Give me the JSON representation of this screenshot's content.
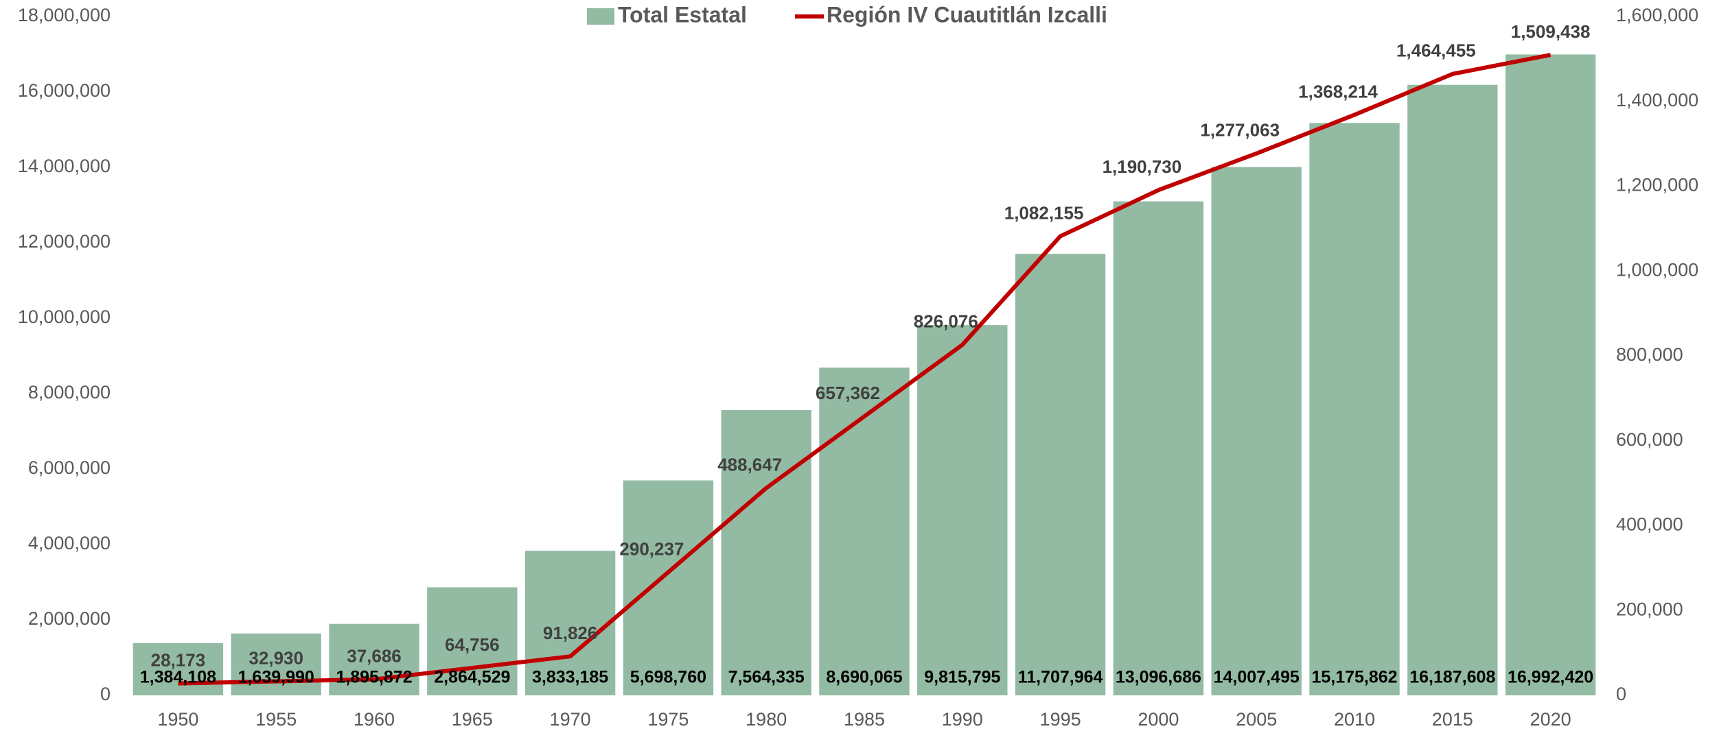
{
  "chart_data": {
    "type": "bar_line",
    "categories": [
      "1950",
      "1955",
      "1960",
      "1965",
      "1970",
      "1975",
      "1980",
      "1985",
      "1990",
      "1995",
      "2000",
      "2005",
      "2010",
      "2015",
      "2020"
    ],
    "series": [
      {
        "name": "Total Estatal",
        "type": "bar",
        "color": "#93bba3",
        "values": [
          1384108,
          1639990,
          1895872,
          2864529,
          3833185,
          5698760,
          7564335,
          8690065,
          9815795,
          11707964,
          13096686,
          14007495,
          15175862,
          16187608,
          16992420
        ],
        "value_labels": [
          "1,384,108",
          "1,639,990",
          "1,895,872",
          "2,864,529",
          "3,833,185",
          "5,698,760",
          "7,564,335",
          "8,690,065",
          "9,815,795",
          "11,707,964",
          "13,096,686",
          "14,007,495",
          "15,175,862",
          "16,187,608",
          "16,992,420"
        ]
      },
      {
        "name": "Región IV Cuautitlán Izcalli",
        "type": "line",
        "axis": "y2",
        "color": "#c00000",
        "values": [
          28173,
          32930,
          37686,
          64756,
          91826,
          290237,
          488647,
          657362,
          826076,
          1082155,
          1190730,
          1277063,
          1368214,
          1464455,
          1509438
        ],
        "value_labels": [
          "28,173",
          "32,930",
          "37,686",
          "64,756",
          "91,826",
          "290,237",
          "488,647",
          "657,362",
          "826,076",
          "1,082,155",
          "1,190,730",
          "1,277,063",
          "1,368,214",
          "1,464,455",
          "1,509,438"
        ]
      }
    ],
    "ylim": [
      0,
      18000000
    ],
    "yticks": [
      0,
      {
        "value": 2000000,
        "label": "2,000,000"
      },
      {
        "value": 4000000,
        "label": "4,000,000"
      },
      {
        "value": 6000000,
        "label": "6,000,000"
      },
      {
        "value": 8000000,
        "label": "8,000,000"
      },
      {
        "value": 10000000,
        "label": "10,000,000"
      },
      {
        "value": 12000000,
        "label": "12,000,000"
      },
      {
        "value": 14000000,
        "label": "14,000,000"
      },
      {
        "value": 16000000,
        "label": "16,000,000"
      },
      {
        "value": 18000000,
        "label": "18,000,000"
      }
    ],
    "y2lim": [
      0,
      1600000
    ],
    "y2ticks": [
      0,
      {
        "value": 200000,
        "label": "200,000"
      },
      {
        "value": 400000,
        "label": "400,000"
      },
      {
        "value": 600000,
        "label": "600,000"
      },
      {
        "value": 800000,
        "label": "800,000"
      },
      {
        "value": 1000000,
        "label": "1,000,000"
      },
      {
        "value": 1200000,
        "label": "1,200,000"
      },
      {
        "value": 1400000,
        "label": "1,400,000"
      },
      {
        "value": 1600000,
        "label": "1,600,000"
      }
    ],
    "legend": "top"
  }
}
